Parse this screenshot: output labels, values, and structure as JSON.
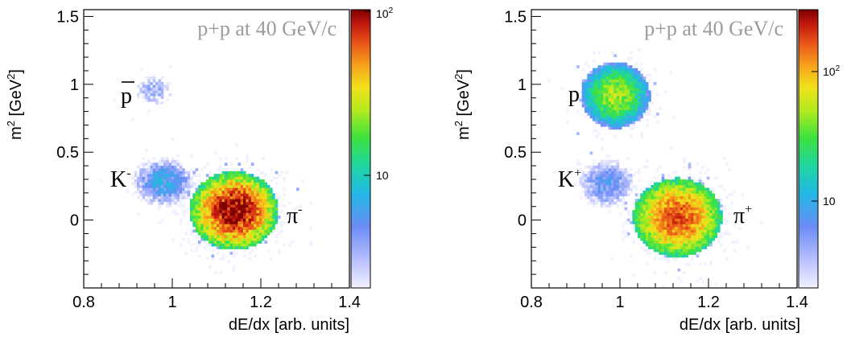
{
  "chart_data": [
    {
      "type": "heatmap",
      "title": "p+p at 40 GeV/c",
      "xlabel": "dE/dx [arb. units]",
      "ylabel": "m² [GeV²]",
      "xlim": [
        0.8,
        1.4
      ],
      "ylim": [
        -0.5,
        1.55
      ],
      "x_ticks": [
        "0.8",
        "1",
        "1.2",
        "1.4"
      ],
      "y_ticks": [
        "0",
        "0.5",
        "1",
        "1.5"
      ],
      "colorbar": {
        "scale": "log",
        "labels": [
          "10",
          "10²"
        ],
        "max": 100
      },
      "annotations": [
        {
          "text": "p",
          "overline": true,
          "x": 0.88,
          "y": 0.92
        },
        {
          "text": "K",
          "sup": "-",
          "x": 0.85,
          "y": 0.27
        },
        {
          "text": "π",
          "sup": "-",
          "x": 1.26,
          "y": 0.0
        }
      ],
      "clusters": [
        {
          "name": "pion-minus",
          "x": 1.14,
          "y": 0.07,
          "sx": 0.045,
          "sy": 0.13,
          "peak": 100,
          "count": 900
        },
        {
          "name": "kaon-minus",
          "x": 0.98,
          "y": 0.28,
          "sx": 0.04,
          "sy": 0.1,
          "peak": 4,
          "count": 60
        },
        {
          "name": "antiproton",
          "x": 0.96,
          "y": 0.95,
          "sx": 0.03,
          "sy": 0.08,
          "peak": 2,
          "count": 12
        }
      ]
    },
    {
      "type": "heatmap",
      "title": "p+p at 40 GeV/c",
      "xlabel": "dE/dx [arb. units]",
      "ylabel": "m² [GeV²]",
      "xlim": [
        0.8,
        1.4
      ],
      "ylim": [
        -0.5,
        1.55
      ],
      "x_ticks": [
        "0.8",
        "1",
        "1.2",
        "1.4"
      ],
      "y_ticks": [
        "0",
        "0.5",
        "1",
        "1.5"
      ],
      "colorbar": {
        "scale": "log",
        "labels": [
          "10",
          "10²"
        ],
        "max": 300
      },
      "annotations": [
        {
          "text": "p",
          "overline": false,
          "x": 0.88,
          "y": 0.92
        },
        {
          "text": "K",
          "sup": "+",
          "x": 0.85,
          "y": 0.27
        },
        {
          "text": "π",
          "sup": "+",
          "x": 1.26,
          "y": 0.0
        }
      ],
      "clusters": [
        {
          "name": "pion-plus",
          "x": 1.13,
          "y": 0.02,
          "sx": 0.045,
          "sy": 0.13,
          "peak": 160,
          "count": 900
        },
        {
          "name": "kaon-plus",
          "x": 0.97,
          "y": 0.27,
          "sx": 0.035,
          "sy": 0.1,
          "peak": 4,
          "count": 70
        },
        {
          "name": "proton",
          "x": 0.99,
          "y": 0.92,
          "sx": 0.035,
          "sy": 0.11,
          "peak": 40,
          "count": 400
        }
      ]
    }
  ]
}
